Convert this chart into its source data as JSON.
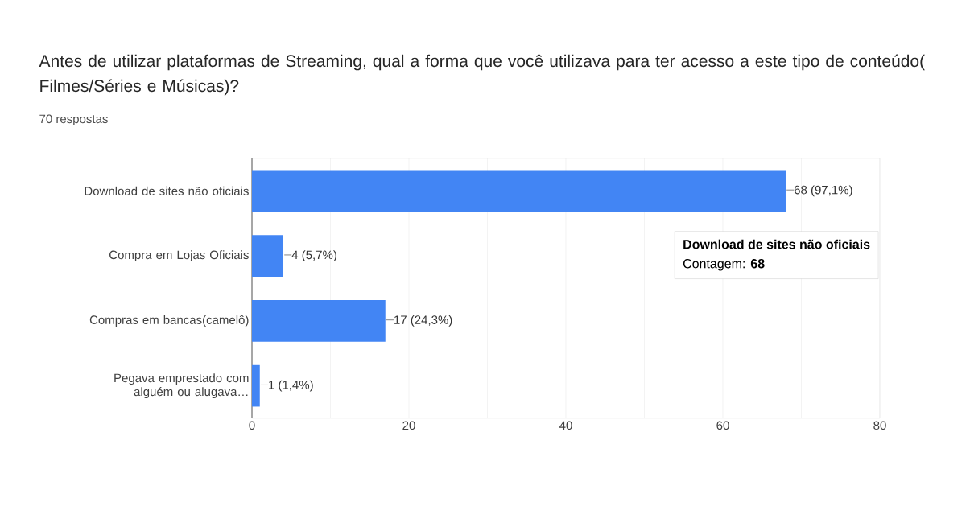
{
  "chart_data": {
    "type": "bar",
    "orientation": "horizontal",
    "title": "Antes de utilizar plataformas de Streaming, qual a forma que você utilizava para ter acesso a este tipo de conteúdo( Filmes/Séries e Músicas)?",
    "subtitle": "70 respostas",
    "categories": [
      "Download de sites não oficiais",
      "Compra em Lojas Oficiais",
      "Compras em bancas(camelô)",
      "Pegava emprestado com alguém ou alugava…"
    ],
    "values": [
      68,
      4,
      17,
      1
    ],
    "value_labels": [
      "68 (97,1%)",
      "4 (5,7%)",
      "17 (24,3%)",
      "1 (1,4%)"
    ],
    "color": "#4285f4",
    "xlim": [
      0,
      80
    ],
    "xticks": [
      0,
      {
        "value": 10,
        "label": null
      },
      20,
      {
        "value": 30,
        "label": null
      },
      40,
      {
        "value": 50,
        "label": null
      },
      60,
      {
        "value": 70,
        "label": null
      },
      80
    ],
    "grid": "x",
    "annotations": [
      "Download de sites não oficiais",
      "Contagem: **68**"
    ]
  }
}
